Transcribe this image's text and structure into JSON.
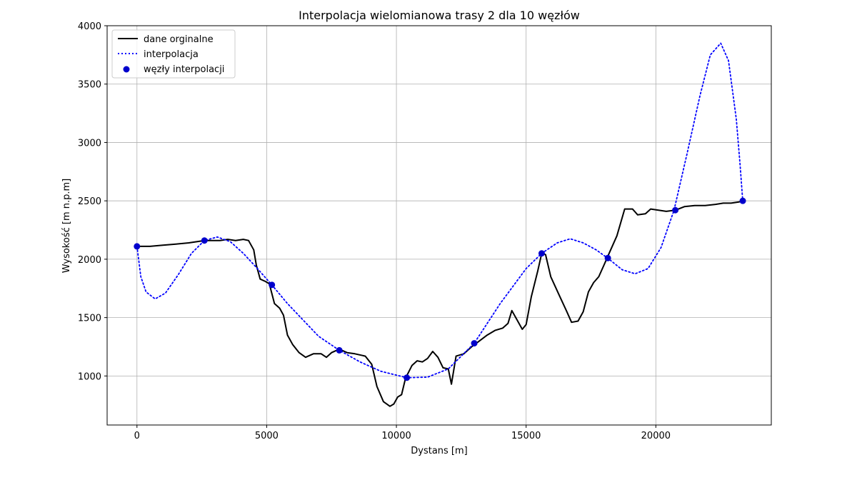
{
  "chart_data": {
    "type": "line",
    "title": "Interpolacja wielomianowa trasy 2 dla 10 węzłów",
    "xlabel": "Dystans [m]",
    "ylabel": "Wysokość [m n.p.m]",
    "xlim": [
      -1150,
      24450
    ],
    "ylim": [
      580,
      4000
    ],
    "xticks": [
      0,
      5000,
      10000,
      15000,
      20000
    ],
    "yticks": [
      1000,
      1500,
      2000,
      2500,
      3000,
      3500,
      4000
    ],
    "grid": true,
    "legend_position": "top-left",
    "series": [
      {
        "name": "dane orginalne",
        "style": "solid",
        "color": "#000000",
        "points": [
          [
            0,
            2110
          ],
          [
            500,
            2110
          ],
          [
            1000,
            2120
          ],
          [
            1500,
            2130
          ],
          [
            2000,
            2140
          ],
          [
            2600,
            2160
          ],
          [
            3200,
            2160
          ],
          [
            3500,
            2170
          ],
          [
            3800,
            2160
          ],
          [
            4100,
            2170
          ],
          [
            4300,
            2160
          ],
          [
            4500,
            2080
          ],
          [
            4600,
            1950
          ],
          [
            4750,
            1830
          ],
          [
            4950,
            1810
          ],
          [
            5100,
            1790
          ],
          [
            5300,
            1620
          ],
          [
            5500,
            1580
          ],
          [
            5650,
            1520
          ],
          [
            5800,
            1350
          ],
          [
            6000,
            1270
          ],
          [
            6250,
            1200
          ],
          [
            6500,
            1160
          ],
          [
            6800,
            1190
          ],
          [
            7100,
            1190
          ],
          [
            7300,
            1160
          ],
          [
            7500,
            1200
          ],
          [
            7800,
            1230
          ],
          [
            8100,
            1200
          ],
          [
            8400,
            1190
          ],
          [
            8800,
            1170
          ],
          [
            9050,
            1100
          ],
          [
            9250,
            910
          ],
          [
            9500,
            780
          ],
          [
            9750,
            740
          ],
          [
            9900,
            760
          ],
          [
            10050,
            820
          ],
          [
            10200,
            840
          ],
          [
            10350,
            980
          ],
          [
            10600,
            1090
          ],
          [
            10800,
            1130
          ],
          [
            11000,
            1120
          ],
          [
            11200,
            1150
          ],
          [
            11400,
            1210
          ],
          [
            11600,
            1160
          ],
          [
            11800,
            1070
          ],
          [
            12000,
            1060
          ],
          [
            12120,
            930
          ],
          [
            12300,
            1170
          ],
          [
            12600,
            1190
          ],
          [
            12900,
            1250
          ],
          [
            13200,
            1300
          ],
          [
            13500,
            1350
          ],
          [
            13800,
            1390
          ],
          [
            14100,
            1410
          ],
          [
            14300,
            1450
          ],
          [
            14450,
            1560
          ],
          [
            14650,
            1480
          ],
          [
            14850,
            1400
          ],
          [
            15000,
            1440
          ],
          [
            15200,
            1680
          ],
          [
            15450,
            1900
          ],
          [
            15600,
            2050
          ],
          [
            15750,
            2040
          ],
          [
            15950,
            1850
          ],
          [
            16300,
            1680
          ],
          [
            16550,
            1560
          ],
          [
            16750,
            1460
          ],
          [
            17000,
            1470
          ],
          [
            17200,
            1550
          ],
          [
            17400,
            1720
          ],
          [
            17600,
            1800
          ],
          [
            17800,
            1850
          ],
          [
            18000,
            1950
          ],
          [
            18200,
            2050
          ],
          [
            18500,
            2200
          ],
          [
            18800,
            2430
          ],
          [
            19100,
            2430
          ],
          [
            19300,
            2380
          ],
          [
            19600,
            2390
          ],
          [
            19800,
            2430
          ],
          [
            20100,
            2420
          ],
          [
            20400,
            2410
          ],
          [
            20750,
            2420
          ],
          [
            21100,
            2450
          ],
          [
            21500,
            2460
          ],
          [
            21900,
            2460
          ],
          [
            22300,
            2470
          ],
          [
            22600,
            2480
          ],
          [
            22900,
            2480
          ],
          [
            23200,
            2490
          ],
          [
            23350,
            2500
          ]
        ]
      },
      {
        "name": "interpolacja",
        "style": "dotted",
        "color": "#0000ff",
        "points": [
          [
            0,
            2110
          ],
          [
            150,
            1850
          ],
          [
            350,
            1720
          ],
          [
            700,
            1660
          ],
          [
            1100,
            1710
          ],
          [
            1600,
            1870
          ],
          [
            2100,
            2050
          ],
          [
            2600,
            2160
          ],
          [
            3100,
            2190
          ],
          [
            3600,
            2150
          ],
          [
            4100,
            2050
          ],
          [
            4600,
            1930
          ],
          [
            5200,
            1780
          ],
          [
            5800,
            1620
          ],
          [
            6400,
            1480
          ],
          [
            7000,
            1340
          ],
          [
            7800,
            1220
          ],
          [
            8600,
            1120
          ],
          [
            9400,
            1040
          ],
          [
            10400,
            985
          ],
          [
            11200,
            990
          ],
          [
            12000,
            1060
          ],
          [
            13000,
            1280
          ],
          [
            14000,
            1620
          ],
          [
            15000,
            1920
          ],
          [
            15600,
            2050
          ],
          [
            16200,
            2140
          ],
          [
            16700,
            2175
          ],
          [
            17200,
            2140
          ],
          [
            17700,
            2080
          ],
          [
            18200,
            2000
          ],
          [
            18700,
            1910
          ],
          [
            19200,
            1875
          ],
          [
            19700,
            1920
          ],
          [
            20200,
            2100
          ],
          [
            20700,
            2420
          ],
          [
            21200,
            2900
          ],
          [
            21700,
            3400
          ],
          [
            22100,
            3750
          ],
          [
            22500,
            3850
          ],
          [
            22800,
            3700
          ],
          [
            23100,
            3200
          ],
          [
            23250,
            2800
          ],
          [
            23350,
            2500
          ]
        ]
      },
      {
        "name": "węzły interpolacji",
        "style": "markers",
        "color": "#0000cc",
        "points": [
          [
            0,
            2110
          ],
          [
            2600,
            2160
          ],
          [
            5200,
            1780
          ],
          [
            7800,
            1220
          ],
          [
            10400,
            985
          ],
          [
            13000,
            1280
          ],
          [
            15600,
            2050
          ],
          [
            18150,
            2010
          ],
          [
            20750,
            2420
          ],
          [
            23350,
            2500
          ]
        ]
      }
    ]
  }
}
